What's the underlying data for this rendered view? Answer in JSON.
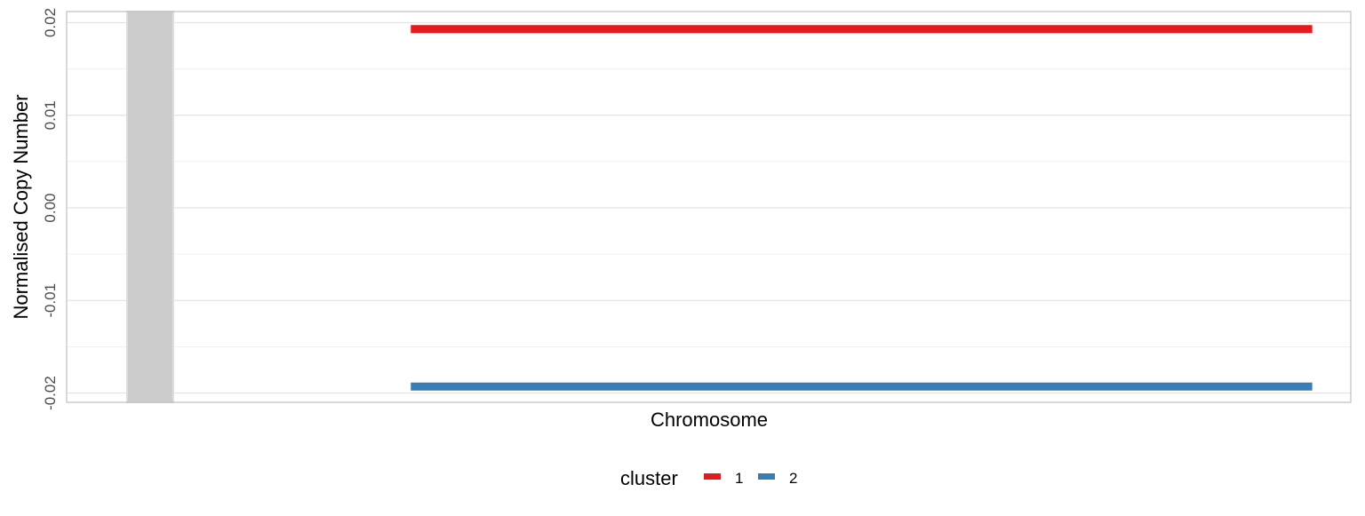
{
  "chart_data": {
    "type": "line",
    "xlabel": "Chromosome",
    "ylabel": "Normalised Copy Number",
    "ylim": [
      -0.021,
      0.0212
    ],
    "y_ticks": [
      -0.02,
      -0.01,
      0.0,
      0.01,
      0.02
    ],
    "y_tick_labels": [
      "-0.02",
      "-0.01",
      "0.00",
      "0.01",
      "0.02"
    ],
    "x_domain": [
      0,
      1
    ],
    "shaded_region": {
      "x": [
        0.047,
        0.083
      ],
      "color": "#cccccc"
    },
    "grid": true,
    "legend": {
      "title": "cluster",
      "placement": "bottom",
      "entries": [
        {
          "label": "1",
          "color": "#e41a1c"
        },
        {
          "label": "2",
          "color": "#377eb8"
        }
      ]
    },
    "series": [
      {
        "name": "1",
        "color": "#e41a1c",
        "x": [
          0.268,
          0.97
        ],
        "y": [
          0.0193,
          0.0193
        ]
      },
      {
        "name": "2",
        "color": "#377eb8",
        "x": [
          0.268,
          0.97
        ],
        "y": [
          -0.0193,
          -0.0193
        ]
      }
    ]
  }
}
